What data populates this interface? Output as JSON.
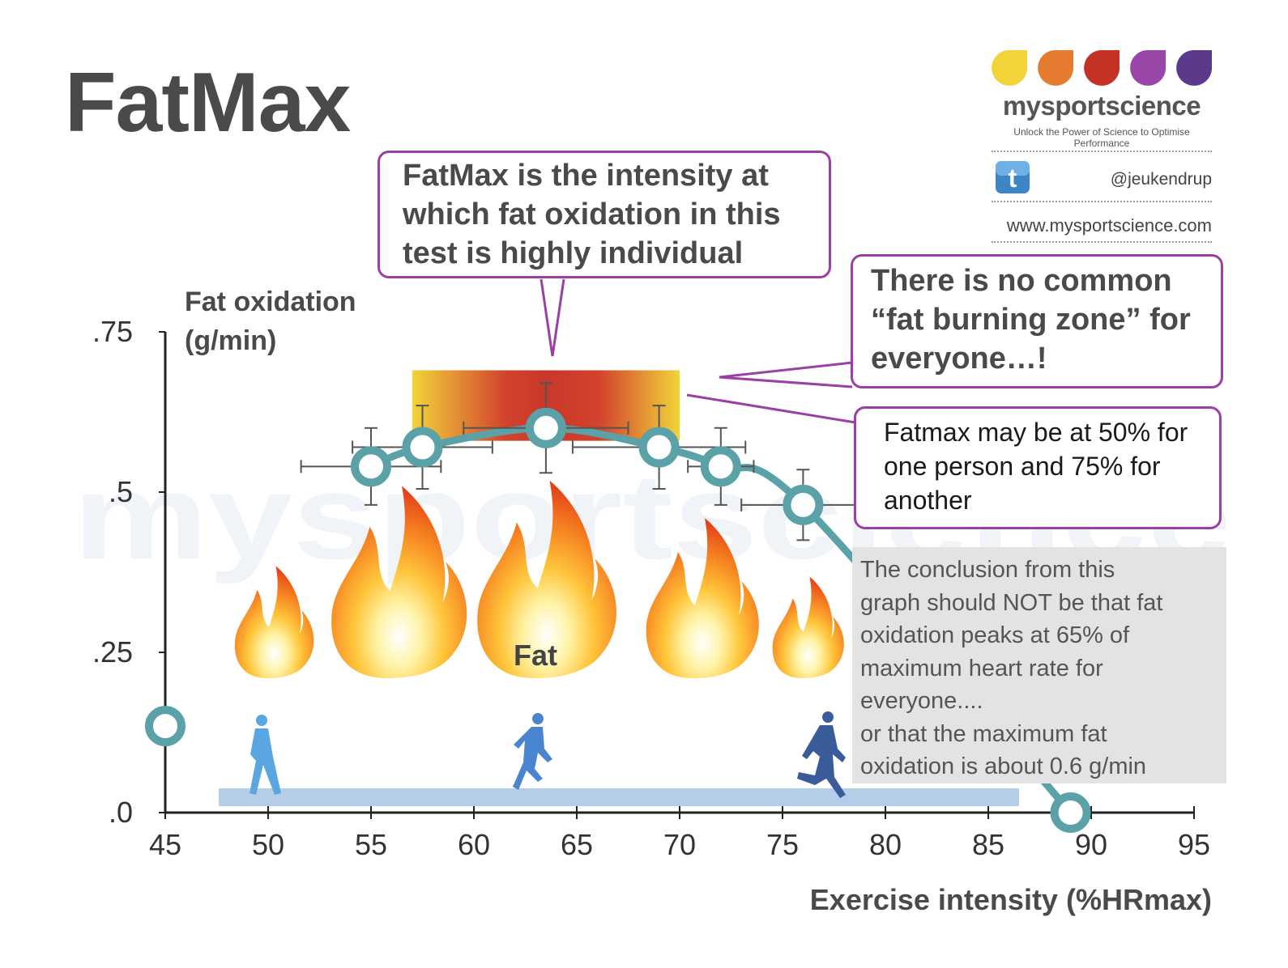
{
  "title": "FatMax",
  "brand": {
    "name": "mysportscience",
    "tagline": "Unlock the Power of Science to Optimise Performance",
    "handle": "@jeukendrup",
    "url": "www.mysportscience.com",
    "watermark": "mysportscience",
    "dot_colors": [
      "#f3d33a",
      "#e47b2f",
      "#c43226",
      "#9a45a8",
      "#5b3a8c"
    ]
  },
  "callouts": {
    "fatmax_intensity": "FatMax is the intensity at which fat oxidation in this test is highly individual",
    "no_zone": "There is no common “fat burning zone” for everyone…!",
    "fatmax_50_75": "Fatmax may be at 50% for one person and 75% for another",
    "note_lines": [
      "The conclusion from this",
      "graph should NOT be that fat",
      "oxidation peaks at 65% of",
      "maximum heart rate for",
      "everyone....",
      "or that the maximum fat",
      "oxidation is about 0.6 g/min"
    ]
  },
  "chart_data": {
    "type": "line",
    "ylabel_lines": [
      "Fat oxidation",
      "(g/min)"
    ],
    "xlabel": "Exercise intensity (%HRmax)",
    "xlim": [
      45,
      95
    ],
    "ylim": [
      0,
      0.75
    ],
    "x_ticks": [
      45,
      50,
      55,
      60,
      65,
      70,
      75,
      80,
      85,
      90,
      95
    ],
    "x_tick_labels": [
      "45",
      "50",
      "55",
      "60",
      "65",
      "70",
      "75",
      "80",
      "85",
      "90",
      "95"
    ],
    "y_ticks": [
      0,
      0.25,
      0.5,
      0.75
    ],
    "y_tick_labels": [
      ".0",
      ".25",
      ".5",
      ".75"
    ],
    "series": [
      {
        "color": "#5aa2a8",
        "points": [
          {
            "x": 45,
            "y": 0.135
          },
          {
            "x": 55,
            "y": 0.54,
            "xerr": 3.4,
            "yerr": 0.06
          },
          {
            "x": 57.5,
            "y": 0.57,
            "xerr": 3.4,
            "yerr": 0.065
          },
          {
            "x": 63.5,
            "y": 0.6,
            "xerr": 4.0,
            "yerr": 0.07
          },
          {
            "x": 69,
            "y": 0.57,
            "xerr": 4.2,
            "yerr": 0.065
          },
          {
            "x": 72,
            "y": 0.54,
            "xerr": 1.6,
            "yerr": 0.06
          },
          {
            "x": 76,
            "y": 0.48,
            "xerr": 3.0,
            "yerr": 0.055
          },
          {
            "x": 89,
            "y": 0.0
          }
        ]
      }
    ],
    "fatmax_zone": {
      "x_start": 57,
      "x_end": 70,
      "y_start": 0.58,
      "y_end": 0.69
    },
    "flame_label": "Fat",
    "colors": {
      "zone_center": "#c9382a",
      "zone_edge": "#f2d43a",
      "callout_border": "#9b3fa6",
      "axis": "#222222"
    }
  }
}
